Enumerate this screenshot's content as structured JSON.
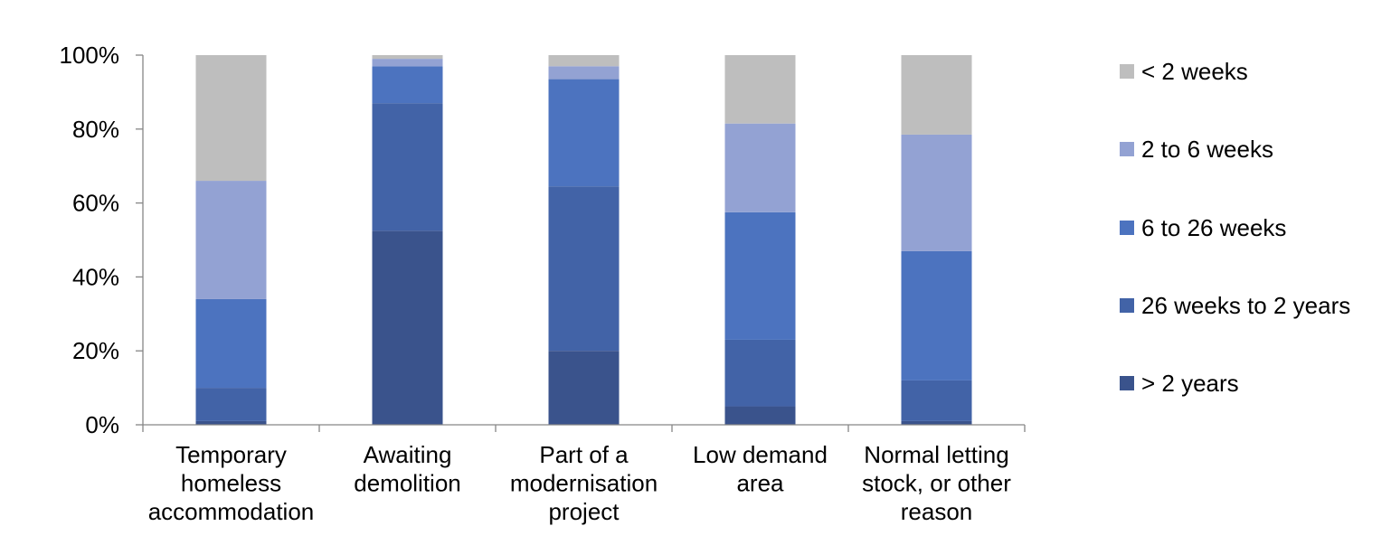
{
  "chart_data": {
    "type": "bar",
    "stacked": true,
    "categories": [
      [
        "Temporary",
        "homeless",
        "accommodation"
      ],
      [
        "Awaiting",
        "demolition"
      ],
      [
        "Part of a",
        "modernisation",
        "project"
      ],
      [
        "Low demand",
        "area"
      ],
      [
        "Normal letting",
        "stock, or other",
        "reason"
      ]
    ],
    "series": [
      {
        "name": "> 2 years",
        "color": "#3A538C",
        "values": [
          1,
          52.5,
          20,
          5,
          1
        ]
      },
      {
        "name": "26 weeks to 2 years",
        "color": "#4263A7",
        "values": [
          9,
          34.5,
          44.5,
          18,
          11
        ]
      },
      {
        "name": "6 to 26 weeks",
        "color": "#4C73BF",
        "values": [
          24,
          10,
          29,
          34.5,
          35
        ]
      },
      {
        "name": "2 to 6 weeks",
        "color": "#93A2D3",
        "values": [
          32,
          2,
          3.5,
          24,
          31.5
        ]
      },
      {
        "name": "< 2 weeks",
        "color": "#BEBEBE",
        "values": [
          34,
          1,
          3,
          18.5,
          21.5
        ]
      }
    ],
    "y_ticks": [
      "0%",
      "20%",
      "40%",
      "60%",
      "80%",
      "100%"
    ],
    "ylim": [
      0,
      100
    ],
    "legend_order": [
      "< 2 weeks",
      "2 to 6 weeks",
      "6 to 26 weeks",
      "26 weeks to 2 years",
      "> 2 years"
    ],
    "legend_position": "right",
    "grid": false
  }
}
